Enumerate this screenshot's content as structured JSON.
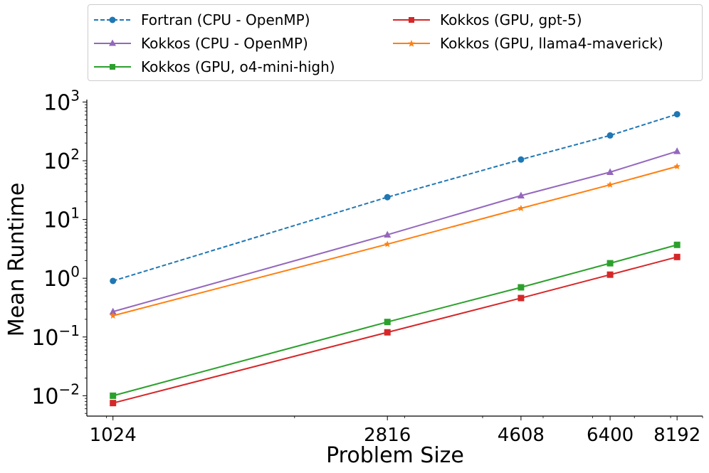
{
  "chart_data": {
    "type": "line",
    "title": "",
    "xlabel": "Problem Size",
    "ylabel": "Mean Runtime",
    "xscale": "log",
    "yscale": "log",
    "x": [
      1024,
      2816,
      4608,
      6400,
      8192
    ],
    "xticks": [
      "1024",
      "2816",
      "4608",
      "6400",
      "8192"
    ],
    "yticks": [
      {
        "base": "10",
        "exp": "−2",
        "value": 0.01
      },
      {
        "base": "10",
        "exp": "−1",
        "value": 0.1
      },
      {
        "base": "10",
        "exp": "0",
        "value": 1
      },
      {
        "base": "10",
        "exp": "1",
        "value": 10
      },
      {
        "base": "10",
        "exp": "2",
        "value": 100
      },
      {
        "base": "10",
        "exp": "3",
        "value": 1000
      }
    ],
    "ylim": [
      0.0045,
      1100
    ],
    "xlim": [
      930,
      9000
    ],
    "legend_position": "top",
    "series": [
      {
        "name": "Fortran (CPU - OpenMP)",
        "color": "#1f77b4",
        "marker": "circle",
        "dashed": true,
        "values": [
          0.9,
          24,
          105,
          270,
          620
        ]
      },
      {
        "name": "Kokkos (CPU - OpenMP)",
        "color": "#9467bd",
        "marker": "triangle",
        "dashed": false,
        "values": [
          0.27,
          5.5,
          25.5,
          64,
          145
        ]
      },
      {
        "name": "Kokkos (GPU, o4-mini-high)",
        "color": "#2ca02c",
        "marker": "square",
        "dashed": false,
        "values": [
          0.01,
          0.18,
          0.7,
          1.8,
          3.7
        ]
      },
      {
        "name": "Kokkos (GPU, gpt-5)",
        "color": "#d62728",
        "marker": "square",
        "dashed": false,
        "values": [
          0.0075,
          0.12,
          0.46,
          1.15,
          2.3
        ]
      },
      {
        "name": "Kokkos (GPU, llama4-maverick)",
        "color": "#ff7f0e",
        "marker": "star",
        "dashed": false,
        "values": [
          0.23,
          3.8,
          15.5,
          39,
          80
        ]
      }
    ]
  }
}
